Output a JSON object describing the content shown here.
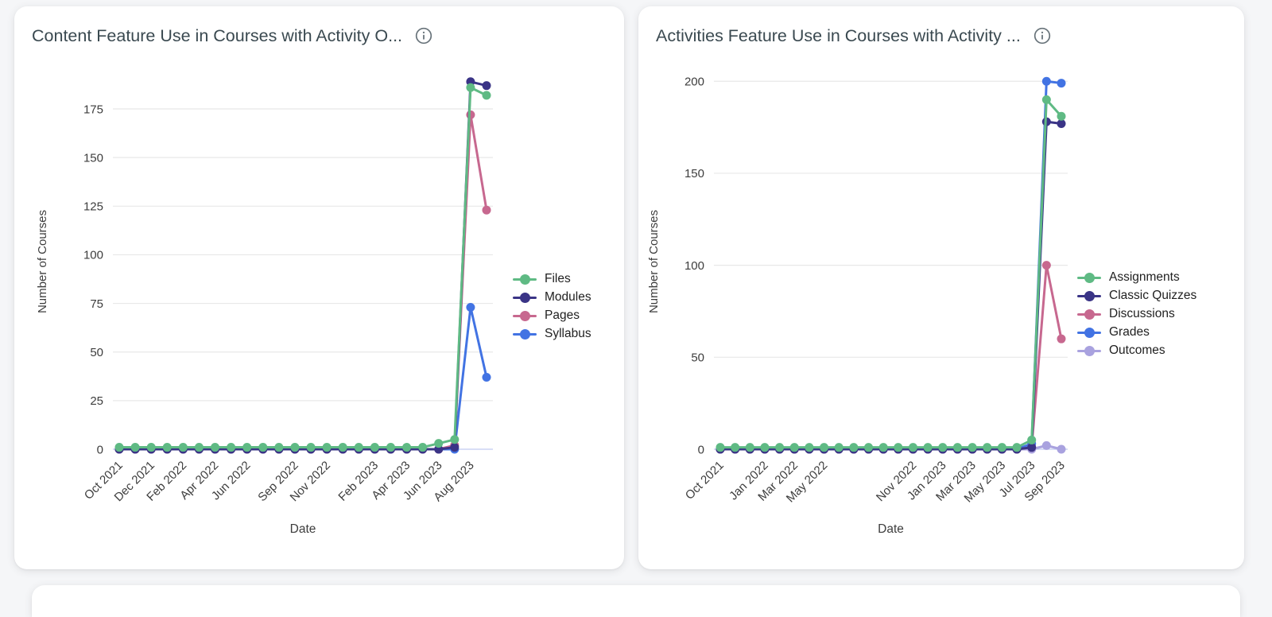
{
  "page": {
    "background_color": "#f5f6f8",
    "card_color": "#ffffff"
  },
  "icons": {
    "info": "info-icon"
  },
  "chart_data": [
    {
      "type": "line",
      "title": "Content Feature Use in Courses with Activity O...",
      "xlabel": "Date",
      "ylabel": "Number of Courses",
      "y_ticks": [
        0,
        25,
        50,
        75,
        100,
        125,
        150,
        175
      ],
      "ylim": [
        0,
        193
      ],
      "grid": "horizontal",
      "legend_position": "right",
      "categories": [
        "Oct 2021",
        "Nov 2021",
        "Dec 2021",
        "Jan 2022",
        "Feb 2022",
        "Mar 2022",
        "Apr 2022",
        "May 2022",
        "Jun 2022",
        "Jul 2022",
        "Aug 2022",
        "Sep 2022",
        "Oct 2022",
        "Nov 2022",
        "Dec 2022",
        "Jan 2023",
        "Feb 2023",
        "Mar 2023",
        "Apr 2023",
        "May 2023",
        "Jun 2023",
        "Jul 2023",
        "Aug 2023",
        "Sep 2023"
      ],
      "x_ticks": [
        {
          "index": 0,
          "label": "Oct 2021"
        },
        {
          "index": 2,
          "label": "Dec 2021"
        },
        {
          "index": 4,
          "label": "Feb 2022"
        },
        {
          "index": 6,
          "label": "Apr 2022"
        },
        {
          "index": 8,
          "label": "Jun 2022"
        },
        {
          "index": 11,
          "label": "Sep 2022"
        },
        {
          "index": 13,
          "label": "Nov 2022"
        },
        {
          "index": 16,
          "label": "Feb 2023"
        },
        {
          "index": 18,
          "label": "Apr 2023"
        },
        {
          "index": 20,
          "label": "Jun 2023"
        },
        {
          "index": 22,
          "label": "Aug 2023"
        }
      ],
      "series": [
        {
          "name": "Files",
          "color": "#5fba84",
          "values": [
            1,
            1,
            1,
            1,
            1,
            1,
            1,
            1,
            1,
            1,
            1,
            1,
            1,
            1,
            1,
            1,
            1,
            1,
            1,
            1,
            3,
            5,
            186,
            182
          ]
        },
        {
          "name": "Modules",
          "color": "#3a3486",
          "values": [
            0,
            0,
            0,
            0,
            0,
            0,
            0,
            0,
            0,
            0,
            0,
            0,
            0,
            0,
            0,
            0,
            0,
            0,
            0,
            0,
            0,
            1,
            189,
            187
          ]
        },
        {
          "name": "Pages",
          "color": "#c7688f",
          "values": [
            0,
            0,
            0,
            0,
            0,
            0,
            0,
            0,
            0,
            0,
            0,
            0,
            0,
            0,
            0,
            0,
            0,
            0,
            0,
            0,
            0,
            2,
            172,
            123
          ]
        },
        {
          "name": "Syllabus",
          "color": "#4273e3",
          "values": [
            0,
            0,
            0,
            0,
            0,
            0,
            0,
            0,
            0,
            0,
            0,
            0,
            0,
            0,
            0,
            0,
            0,
            0,
            0,
            0,
            0,
            0,
            73,
            37
          ]
        }
      ]
    },
    {
      "type": "line",
      "title": "Activities Feature Use in Courses with Activity ...",
      "xlabel": "Date",
      "ylabel": "Number of Courses",
      "y_ticks": [
        0,
        50,
        100,
        150,
        200
      ],
      "ylim": [
        0,
        204
      ],
      "grid": "horizontal",
      "legend_position": "right",
      "categories": [
        "Oct 2021",
        "Nov 2021",
        "Dec 2021",
        "Jan 2022",
        "Feb 2022",
        "Mar 2022",
        "Apr 2022",
        "May 2022",
        "Jun 2022",
        "Jul 2022",
        "Aug 2022",
        "Sep 2022",
        "Oct 2022",
        "Nov 2022",
        "Dec 2022",
        "Jan 2023",
        "Feb 2023",
        "Mar 2023",
        "Apr 2023",
        "May 2023",
        "Jun 2023",
        "Jul 2023",
        "Aug 2023",
        "Sep 2023"
      ],
      "x_ticks": [
        {
          "index": 0,
          "label": "Oct 2021"
        },
        {
          "index": 3,
          "label": "Jan 2022"
        },
        {
          "index": 5,
          "label": "Mar 2022"
        },
        {
          "index": 7,
          "label": "May 2022"
        },
        {
          "index": 13,
          "label": "Nov 2022"
        },
        {
          "index": 15,
          "label": "Jan 2023"
        },
        {
          "index": 17,
          "label": "Mar 2023"
        },
        {
          "index": 19,
          "label": "May 2023"
        },
        {
          "index": 21,
          "label": "Jul 2023"
        },
        {
          "index": 23,
          "label": "Sep 2023"
        }
      ],
      "series": [
        {
          "name": "Assignments",
          "color": "#5fba84",
          "values": [
            1,
            1,
            1,
            1,
            1,
            1,
            1,
            1,
            1,
            1,
            1,
            1,
            1,
            1,
            1,
            1,
            1,
            1,
            1,
            1,
            1,
            5,
            190,
            181
          ]
        },
        {
          "name": "Classic Quizzes",
          "color": "#3a3486",
          "values": [
            0,
            0,
            0,
            0,
            0,
            0,
            0,
            0,
            0,
            0,
            0,
            0,
            0,
            0,
            0,
            0,
            0,
            0,
            0,
            0,
            0,
            1,
            178,
            177
          ]
        },
        {
          "name": "Discussions",
          "color": "#c7688f",
          "values": [
            0,
            0,
            0,
            0,
            0,
            0,
            0,
            0,
            0,
            0,
            0,
            0,
            0,
            0,
            0,
            0,
            0,
            0,
            0,
            0,
            0,
            1,
            100,
            60
          ]
        },
        {
          "name": "Grades",
          "color": "#4273e3",
          "values": [
            0,
            0,
            0,
            0,
            0,
            0,
            0,
            0,
            0,
            0,
            0,
            0,
            0,
            0,
            0,
            0,
            0,
            0,
            0,
            0,
            0,
            3,
            200,
            199
          ]
        },
        {
          "name": "Outcomes",
          "color": "#a9a2df",
          "values": [
            0,
            0,
            0,
            0,
            0,
            0,
            0,
            0,
            0,
            0,
            0,
            0,
            0,
            0,
            0,
            0,
            0,
            0,
            0,
            0,
            0,
            0,
            2,
            0
          ]
        }
      ]
    }
  ],
  "style": {
    "grid_color": "#e8e8e8",
    "zero_line_color": "#c0cbf0",
    "tick_text_color": "#3d3d3d",
    "title_color": "#3a4950",
    "info_icon_color": "#68737a"
  }
}
